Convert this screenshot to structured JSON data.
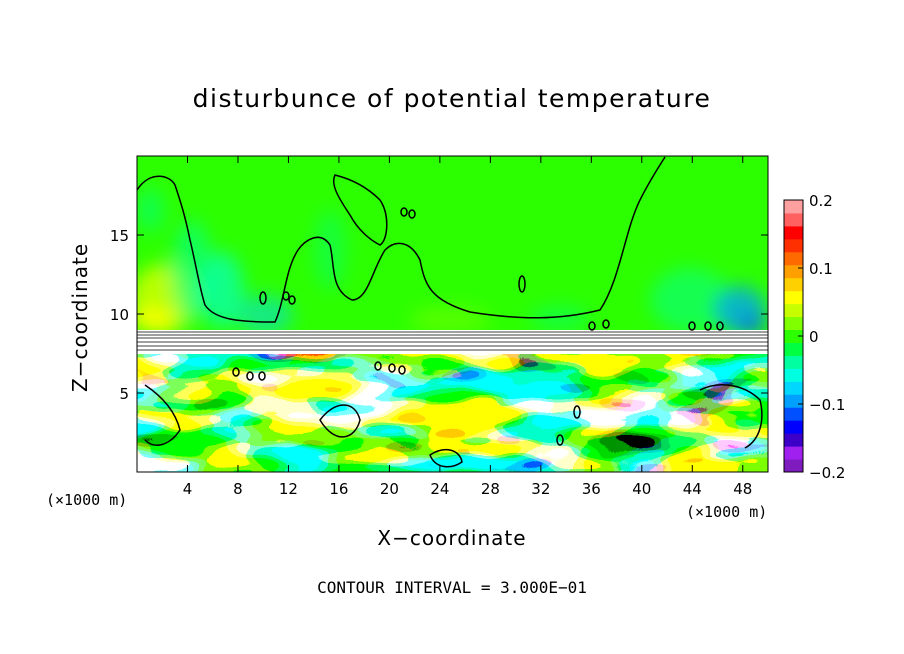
{
  "chart_data": {
    "type": "heatmap",
    "title": "disturbunce of potential temperature",
    "xlabel": "X−coordinate",
    "ylabel": "Z−coordinate",
    "x_unit_label": "(×1000 m)",
    "x_unit_label_right": "(×1000 m)",
    "xlim": [
      0,
      50
    ],
    "ylim": [
      0,
      20
    ],
    "x_ticks": [
      4,
      8,
      12,
      16,
      20,
      24,
      28,
      32,
      36,
      40,
      44,
      48
    ],
    "y_ticks": [
      5,
      10,
      15
    ],
    "colorbar": {
      "range": [
        -0.2,
        0.2
      ],
      "tick_labels": [
        "0.2",
        "0.1",
        "0",
        "−0.1",
        "−0.2"
      ],
      "tick_values": [
        0.2,
        0.1,
        0,
        -0.1,
        -0.2
      ],
      "colors": [
        "#7f1cbf",
        "#a020f0",
        "#3c00c8",
        "#0000ff",
        "#0050ff",
        "#00a0ff",
        "#00d7ff",
        "#00ffe0",
        "#00ffa0",
        "#00ff40",
        "#2cff00",
        "#80ff00",
        "#c8ff00",
        "#ffff00",
        "#ffd000",
        "#ffa000",
        "#ff6a00",
        "#ff3000",
        "#ff0000",
        "#ff6060",
        "#ffa0a0"
      ]
    },
    "contour_interval_label": "CONTOUR INTERVAL = 3.000E−01",
    "fields": {
      "upper_layer": "near zero (green), slight positive near z=9–10, slight negative (cyan) patches near x=8–10 and x=44–49",
      "lower_layer": "turbulent mixing below z≈8 with values saturating beyond ±0.2"
    },
    "grid": false,
    "legend": "colorbar-right"
  }
}
